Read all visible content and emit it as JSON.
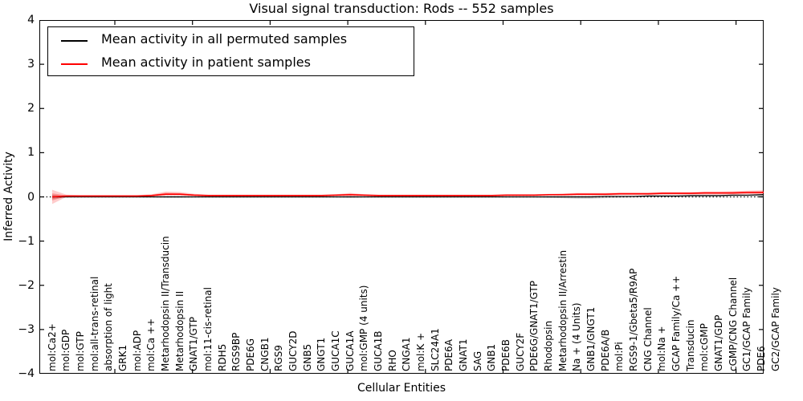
{
  "title": "Visual signal transduction: Rods -- 552 samples",
  "legend": {
    "items": [
      {
        "label": "Mean activity in all permuted samples",
        "color": "#000000"
      },
      {
        "label": "Mean activity in patient samples",
        "color": "#ff0000"
      }
    ]
  },
  "axes": {
    "xlabel": "Cellular Entities",
    "ylabel": "Inferred Activity",
    "ytick_labels": [
      "4",
      "3",
      "2",
      "1",
      "0",
      "−1",
      "−2",
      "−3",
      "−4"
    ]
  },
  "chart_data": {
    "type": "line",
    "title": "Visual signal transduction: Rods -- 552 samples",
    "xlabel": "Cellular Entities",
    "ylabel": "Inferred Activity",
    "ylim": [
      -4,
      4
    ],
    "yticks": [
      4,
      3,
      2,
      1,
      0,
      -1,
      -2,
      -3,
      -4
    ],
    "grid": false,
    "zero_line_style": "dotted",
    "legend_position": "upper left",
    "categories": [
      "mol:Ca2+",
      "mol:GDP",
      "mol:GTP",
      "mol:all-trans-retinal",
      "absorption of light",
      "GRK1",
      "mol:ADP",
      "mol:Ca ++",
      "Metarhodopsin II/Transducin",
      "Metarhodopsin II",
      "GNAT1/GTP",
      "mol:11-cis-retinal",
      "RDH5",
      "RGS9BP",
      "PDE6G",
      "CNGB1",
      "RGS9",
      "GUCY2D",
      "GNB5",
      "GNGT1",
      "GUCA1C",
      "GUCA1A",
      "mol:GMP (4 units)",
      "GUCA1B",
      "RHO",
      "CNGA1",
      "mol:K +",
      "SLC24A1",
      "PDE6A",
      "GNAT1",
      "SAG",
      "GNB1",
      "PDE6B",
      "GUCY2F",
      "PDE6G/GNAT1/GTP",
      "Rhodopsin",
      "Metarhodopsin II/Arrestin",
      "Na + (4 Units)",
      "GNB1/GNGT1",
      "PDE6A/B",
      "mol:Pi",
      "RGS9-1/Gbeta5/R9AP",
      "CNG Channel",
      "mol:Na +",
      "GCAP Family/Ca ++",
      "Transducin",
      "mol:cGMP",
      "GNAT1/GDP",
      "cGMP/CNG Channel",
      "GC1/GCAP Family",
      "PDE6",
      "GC2/GCAP Family"
    ],
    "series": [
      {
        "name": "Mean activity in all permuted samples",
        "color": "#000000",
        "band_color": "#505050",
        "values": [
          0,
          0,
          0,
          0,
          0,
          0,
          0,
          0,
          0,
          0,
          0,
          0,
          0,
          0,
          0,
          0,
          0,
          0,
          0,
          0,
          0,
          0,
          0,
          0,
          0,
          0,
          0,
          0,
          0,
          0,
          0,
          0,
          0,
          0,
          0,
          0,
          0,
          0,
          0,
          0.01,
          0.01,
          0.01,
          0.02,
          0.02,
          0.02,
          0.03,
          0.03,
          0.03,
          0.04,
          0.04,
          0.05,
          0.06
        ],
        "band_upper": [
          0.05,
          0.01,
          0.01,
          0.01,
          0.01,
          0.01,
          0.01,
          0.01,
          0.02,
          0.02,
          0.01,
          0.01,
          0.01,
          0.01,
          0.01,
          0.01,
          0.01,
          0.01,
          0.01,
          0.01,
          0.01,
          0.02,
          0.01,
          0.01,
          0.01,
          0.01,
          0.01,
          0.01,
          0.01,
          0.01,
          0.01,
          0.01,
          0.01,
          0.01,
          0.01,
          0.02,
          0.02,
          0.02,
          0.02,
          0.02,
          0.02,
          0.02,
          0.03,
          0.03,
          0.03,
          0.04,
          0.04,
          0.04,
          0.05,
          0.05,
          0.06,
          0.08
        ],
        "band_lower": [
          -0.05,
          -0.01,
          -0.01,
          -0.01,
          -0.01,
          -0.01,
          -0.01,
          -0.01,
          -0.02,
          -0.02,
          -0.01,
          -0.01,
          -0.01,
          -0.01,
          -0.01,
          -0.01,
          -0.01,
          -0.01,
          -0.01,
          -0.01,
          -0.01,
          -0.02,
          -0.01,
          -0.01,
          -0.01,
          -0.01,
          -0.01,
          -0.01,
          -0.01,
          -0.01,
          -0.01,
          -0.01,
          -0.01,
          -0.01,
          -0.01,
          -0.02,
          -0.03,
          -0.04,
          -0.04,
          -0.03,
          -0.02,
          -0.01,
          -0.01,
          -0.01,
          -0.01,
          -0.01,
          0.0,
          0.0,
          0.0,
          0.01,
          0.01,
          0.02
        ]
      },
      {
        "name": "Mean activity in patient samples",
        "color": "#ff0000",
        "band_color": "#ff0000",
        "values": [
          0.0,
          0.02,
          0.02,
          0.02,
          0.02,
          0.02,
          0.02,
          0.03,
          0.06,
          0.06,
          0.04,
          0.03,
          0.03,
          0.03,
          0.03,
          0.03,
          0.03,
          0.03,
          0.03,
          0.03,
          0.04,
          0.05,
          0.04,
          0.03,
          0.03,
          0.03,
          0.03,
          0.03,
          0.03,
          0.03,
          0.03,
          0.03,
          0.04,
          0.04,
          0.04,
          0.05,
          0.05,
          0.06,
          0.06,
          0.06,
          0.07,
          0.07,
          0.07,
          0.08,
          0.08,
          0.08,
          0.09,
          0.09,
          0.09,
          0.1,
          0.1,
          0.11
        ],
        "band_upper": [
          0.16,
          0.05,
          0.04,
          0.04,
          0.04,
          0.04,
          0.04,
          0.06,
          0.12,
          0.11,
          0.07,
          0.05,
          0.05,
          0.05,
          0.05,
          0.05,
          0.05,
          0.05,
          0.05,
          0.05,
          0.06,
          0.09,
          0.06,
          0.05,
          0.05,
          0.05,
          0.05,
          0.05,
          0.05,
          0.05,
          0.05,
          0.05,
          0.06,
          0.06,
          0.06,
          0.07,
          0.08,
          0.09,
          0.09,
          0.09,
          0.1,
          0.1,
          0.1,
          0.11,
          0.11,
          0.11,
          0.12,
          0.12,
          0.13,
          0.14,
          0.15,
          0.17
        ],
        "band_lower": [
          -0.16,
          0.0,
          0.0,
          0.0,
          0.0,
          0.0,
          0.0,
          0.01,
          0.03,
          0.03,
          0.02,
          0.01,
          0.01,
          0.01,
          0.01,
          0.01,
          0.01,
          0.01,
          0.01,
          0.01,
          0.02,
          0.02,
          0.02,
          0.01,
          0.01,
          0.01,
          0.01,
          0.01,
          0.01,
          0.01,
          0.01,
          0.01,
          0.02,
          0.02,
          0.02,
          0.03,
          0.03,
          0.03,
          0.03,
          0.03,
          0.04,
          0.04,
          0.04,
          0.05,
          0.05,
          0.05,
          0.05,
          0.05,
          0.05,
          0.06,
          0.06,
          0.06
        ]
      }
    ]
  }
}
